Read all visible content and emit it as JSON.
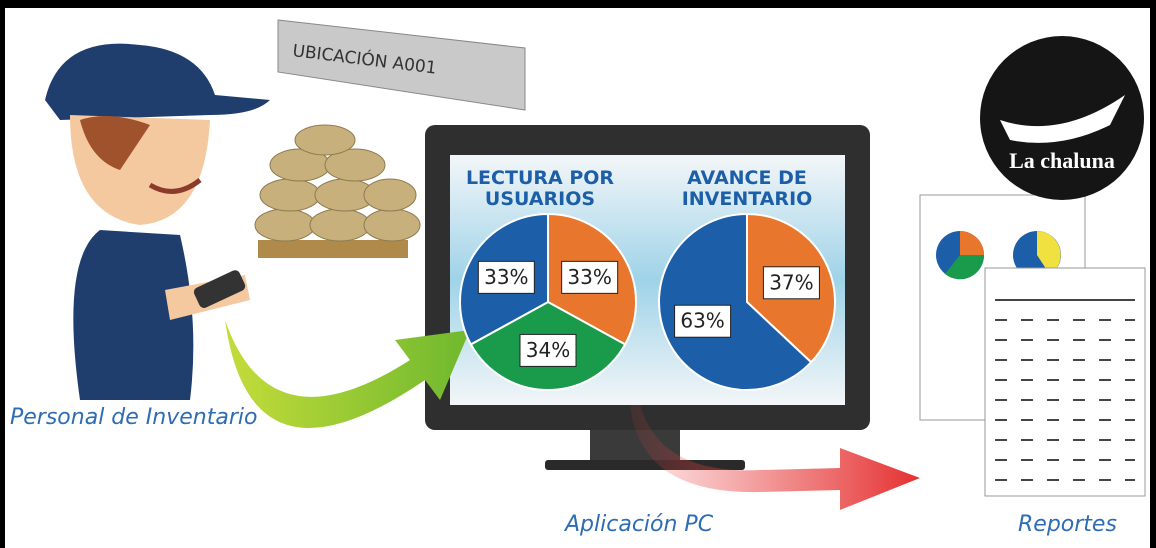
{
  "location_sign": "UBICACIÓN A001",
  "logo": "La chaluna",
  "captions": {
    "personnel": "Personal de Inventario",
    "application": "Aplicación PC",
    "reports": "Reportes"
  },
  "chart_data": [
    {
      "type": "pie",
      "title": "LECTURA POR USUARIOS",
      "values": [
        33,
        34,
        33
      ],
      "value_labels": [
        "33%",
        "34%",
        "33%"
      ],
      "colors": [
        "#e8762d",
        "#1a9a4b",
        "#1c5fa8"
      ]
    },
    {
      "type": "pie",
      "title": "AVANCE DE INVENTARIO",
      "values": [
        37,
        63
      ],
      "value_labels": [
        "37%",
        "63%"
      ],
      "colors": [
        "#e8762d",
        "#1c5fa8"
      ]
    }
  ]
}
